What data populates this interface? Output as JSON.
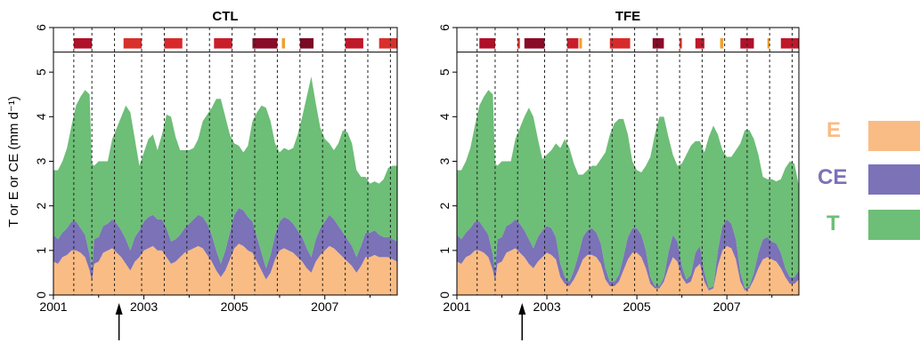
{
  "chart_data": {
    "type": "area",
    "stacked": true,
    "ylabel": "T or E or CE (mm d⁻¹)",
    "ylim": [
      0,
      6
    ],
    "y_ticks": [
      0,
      1,
      2,
      3,
      4,
      5,
      6
    ],
    "xlim": [
      2001.0,
      2008.6
    ],
    "x_ticks": [
      2001,
      2003,
      2005,
      2007
    ],
    "event_bar_ylim": [
      5.45,
      6.0
    ],
    "panels": [
      {
        "title": "CTL",
        "arrow_x": 2002.45,
        "dashed_lines": [
          2001.45,
          2001.85,
          2002.35,
          2002.95,
          2003.45,
          2003.95,
          2004.45,
          2004.95,
          2005.45,
          2005.95,
          2006.45,
          2006.95,
          2007.45,
          2007.95,
          2008.45
        ],
        "events": [
          {
            "x0": 2001.45,
            "x1": 2001.85,
            "color": "#b0102a"
          },
          {
            "x0": 2002.55,
            "x1": 2002.95,
            "color": "#d8302a"
          },
          {
            "x0": 2003.45,
            "x1": 2003.85,
            "color": "#d82a2a"
          },
          {
            "x0": 2004.55,
            "x1": 2004.95,
            "color": "#c81e2a"
          },
          {
            "x0": 2005.4,
            "x1": 2005.95,
            "color": "#8a0a28"
          },
          {
            "x0": 2006.05,
            "x1": 2006.12,
            "color": "#f0a030"
          },
          {
            "x0": 2006.45,
            "x1": 2006.75,
            "color": "#7a0a26"
          },
          {
            "x0": 2007.45,
            "x1": 2007.85,
            "color": "#c0182a"
          },
          {
            "x0": 2008.2,
            "x1": 2008.6,
            "color": "#d8302a"
          }
        ],
        "x": [
          2001.0,
          2001.1,
          2001.2,
          2001.3,
          2001.4,
          2001.5,
          2001.6,
          2001.7,
          2001.8,
          2001.85,
          2001.9,
          2002.0,
          2002.1,
          2002.2,
          2002.3,
          2002.4,
          2002.5,
          2002.6,
          2002.7,
          2002.8,
          2002.9,
          2003.0,
          2003.1,
          2003.2,
          2003.3,
          2003.4,
          2003.5,
          2003.6,
          2003.7,
          2003.8,
          2003.9,
          2004.0,
          2004.1,
          2004.2,
          2004.3,
          2004.4,
          2004.5,
          2004.6,
          2004.7,
          2004.8,
          2004.9,
          2005.0,
          2005.1,
          2005.2,
          2005.3,
          2005.4,
          2005.5,
          2005.6,
          2005.7,
          2005.8,
          2005.9,
          2006.0,
          2006.1,
          2006.2,
          2006.3,
          2006.4,
          2006.5,
          2006.6,
          2006.7,
          2006.8,
          2006.9,
          2007.0,
          2007.1,
          2007.2,
          2007.3,
          2007.4,
          2007.5,
          2007.6,
          2007.7,
          2007.8,
          2007.9,
          2008.0,
          2008.1,
          2008.2,
          2008.3,
          2008.4,
          2008.5,
          2008.6
        ],
        "series": [
          {
            "name": "E",
            "color": "#f9bc84",
            "values": [
              0.75,
              0.7,
              0.85,
              0.9,
              1.0,
              1.0,
              0.95,
              0.85,
              0.55,
              0.3,
              0.7,
              0.75,
              0.95,
              1.0,
              1.05,
              0.95,
              0.85,
              0.7,
              0.55,
              0.75,
              0.85,
              1.0,
              1.05,
              1.1,
              1.0,
              1.0,
              0.85,
              0.7,
              0.75,
              0.85,
              0.95,
              1.0,
              1.05,
              1.1,
              1.05,
              0.9,
              0.75,
              0.55,
              0.4,
              0.55,
              0.8,
              1.05,
              1.15,
              1.1,
              1.0,
              0.95,
              0.75,
              0.55,
              0.35,
              0.5,
              0.8,
              1.0,
              1.05,
              1.0,
              0.95,
              0.85,
              0.75,
              0.6,
              0.5,
              0.75,
              0.9,
              1.0,
              1.1,
              1.05,
              0.95,
              0.85,
              0.75,
              0.65,
              0.5,
              0.65,
              0.85,
              0.85,
              0.9,
              0.85,
              0.85,
              0.85,
              0.8,
              0.75
            ]
          },
          {
            "name": "CE",
            "color": "#7b72b8",
            "values": [
              0.6,
              0.55,
              0.55,
              0.6,
              0.65,
              0.65,
              0.55,
              0.5,
              0.35,
              0.25,
              0.55,
              0.55,
              0.6,
              0.6,
              0.65,
              0.65,
              0.6,
              0.55,
              0.45,
              0.55,
              0.6,
              0.65,
              0.7,
              0.7,
              0.7,
              0.7,
              0.65,
              0.5,
              0.5,
              0.5,
              0.55,
              0.6,
              0.65,
              0.7,
              0.7,
              0.7,
              0.6,
              0.45,
              0.3,
              0.45,
              0.6,
              0.75,
              0.8,
              0.8,
              0.75,
              0.7,
              0.55,
              0.4,
              0.25,
              0.4,
              0.55,
              0.65,
              0.7,
              0.7,
              0.65,
              0.6,
              0.55,
              0.45,
              0.35,
              0.5,
              0.6,
              0.65,
              0.7,
              0.65,
              0.6,
              0.55,
              0.5,
              0.45,
              0.35,
              0.45,
              0.55,
              0.55,
              0.55,
              0.5,
              0.45,
              0.45,
              0.45,
              0.45
            ]
          },
          {
            "name": "T",
            "color": "#6dbe77",
            "values": [
              1.45,
              1.55,
              1.6,
              1.8,
              2.15,
              2.6,
              2.95,
              3.25,
              3.6,
              2.4,
              1.65,
              1.7,
              1.45,
              1.4,
              1.8,
              2.15,
              2.55,
              3.0,
              3.1,
              2.2,
              1.45,
              1.55,
              1.75,
              1.8,
              1.55,
              1.9,
              2.55,
              2.8,
              2.3,
              1.9,
              1.75,
              1.65,
              1.6,
              1.7,
              2.15,
              2.45,
              2.85,
              3.4,
              3.7,
              3.0,
              2.2,
              1.6,
              1.4,
              1.3,
              1.6,
              2.25,
              2.8,
              3.3,
              3.6,
              3.0,
              2.05,
              1.55,
              1.55,
              1.55,
              1.7,
              2.15,
              2.7,
              3.4,
              4.05,
              3.05,
              2.25,
              1.85,
              1.6,
              1.55,
              1.85,
              2.3,
              2.4,
              2.3,
              1.95,
              1.55,
              1.25,
              1.1,
              1.1,
              1.15,
              1.3,
              1.55,
              1.65,
              1.7
            ]
          }
        ]
      },
      {
        "title": "TFE",
        "arrow_x": 2002.45,
        "dashed_lines": [
          2001.45,
          2001.85,
          2002.35,
          2002.95,
          2003.45,
          2003.95,
          2004.45,
          2004.95,
          2005.45,
          2005.95,
          2006.45,
          2006.95,
          2007.45,
          2007.95,
          2008.45
        ],
        "events": [
          {
            "x0": 2001.5,
            "x1": 2001.85,
            "color": "#b0102a"
          },
          {
            "x0": 2002.35,
            "x1": 2002.4,
            "color": "#d8302a"
          },
          {
            "x0": 2002.5,
            "x1": 2002.95,
            "color": "#8a0a28"
          },
          {
            "x0": 2003.45,
            "x1": 2003.7,
            "color": "#c81e2a"
          },
          {
            "x0": 2003.72,
            "x1": 2003.78,
            "color": "#f0a030"
          },
          {
            "x0": 2004.4,
            "x1": 2004.85,
            "color": "#d82a2a"
          },
          {
            "x0": 2005.35,
            "x1": 2005.6,
            "color": "#8a0a28"
          },
          {
            "x0": 2005.95,
            "x1": 2006.0,
            "color": "#e0302a"
          },
          {
            "x0": 2006.3,
            "x1": 2006.5,
            "color": "#c0182a"
          },
          {
            "x0": 2006.85,
            "x1": 2006.92,
            "color": "#f0a030"
          },
          {
            "x0": 2007.3,
            "x1": 2007.6,
            "color": "#b0102a"
          },
          {
            "x0": 2007.9,
            "x1": 2007.95,
            "color": "#f0a030"
          },
          {
            "x0": 2008.2,
            "x1": 2008.6,
            "color": "#c0182a"
          }
        ],
        "x": [
          2001.0,
          2001.1,
          2001.2,
          2001.3,
          2001.4,
          2001.5,
          2001.6,
          2001.7,
          2001.8,
          2001.85,
          2001.9,
          2002.0,
          2002.1,
          2002.2,
          2002.3,
          2002.4,
          2002.5,
          2002.6,
          2002.7,
          2002.8,
          2002.9,
          2003.0,
          2003.1,
          2003.2,
          2003.3,
          2003.4,
          2003.5,
          2003.6,
          2003.7,
          2003.8,
          2003.9,
          2004.0,
          2004.1,
          2004.2,
          2004.3,
          2004.4,
          2004.5,
          2004.6,
          2004.7,
          2004.8,
          2004.9,
          2005.0,
          2005.1,
          2005.2,
          2005.3,
          2005.4,
          2005.5,
          2005.6,
          2005.7,
          2005.8,
          2005.9,
          2006.0,
          2006.1,
          2006.2,
          2006.3,
          2006.4,
          2006.5,
          2006.6,
          2006.7,
          2006.8,
          2006.9,
          2007.0,
          2007.1,
          2007.2,
          2007.3,
          2007.4,
          2007.5,
          2007.6,
          2007.7,
          2007.8,
          2007.9,
          2008.0,
          2008.1,
          2008.2,
          2008.3,
          2008.4,
          2008.5,
          2008.6
        ],
        "series": [
          {
            "name": "E",
            "color": "#f9bc84",
            "values": [
              0.75,
              0.7,
              0.85,
              0.9,
              1.0,
              1.0,
              0.95,
              0.85,
              0.55,
              0.3,
              0.7,
              0.75,
              0.95,
              1.0,
              1.05,
              0.95,
              0.85,
              0.7,
              0.6,
              0.75,
              0.85,
              0.95,
              0.9,
              0.8,
              0.4,
              0.25,
              0.2,
              0.35,
              0.55,
              0.8,
              0.9,
              0.9,
              0.85,
              0.7,
              0.35,
              0.2,
              0.2,
              0.3,
              0.55,
              0.8,
              0.95,
              0.95,
              0.85,
              0.6,
              0.25,
              0.15,
              0.15,
              0.3,
              0.6,
              0.85,
              0.75,
              0.4,
              0.25,
              0.3,
              0.6,
              0.7,
              0.3,
              0.1,
              0.15,
              0.65,
              1.0,
              1.1,
              1.05,
              0.8,
              0.3,
              0.1,
              0.15,
              0.35,
              0.6,
              0.8,
              0.85,
              0.8,
              0.75,
              0.6,
              0.4,
              0.25,
              0.25,
              0.35
            ]
          },
          {
            "name": "CE",
            "color": "#7b72b8",
            "values": [
              0.6,
              0.55,
              0.55,
              0.6,
              0.65,
              0.65,
              0.55,
              0.5,
              0.35,
              0.25,
              0.55,
              0.55,
              0.6,
              0.6,
              0.65,
              0.65,
              0.6,
              0.55,
              0.45,
              0.55,
              0.6,
              0.6,
              0.6,
              0.5,
              0.3,
              0.15,
              0.1,
              0.2,
              0.35,
              0.5,
              0.55,
              0.6,
              0.55,
              0.45,
              0.25,
              0.1,
              0.1,
              0.15,
              0.3,
              0.5,
              0.55,
              0.55,
              0.5,
              0.4,
              0.15,
              0.05,
              0.05,
              0.1,
              0.35,
              0.5,
              0.45,
              0.25,
              0.1,
              0.15,
              0.35,
              0.4,
              0.2,
              0.05,
              0.05,
              0.35,
              0.55,
              0.6,
              0.55,
              0.45,
              0.2,
              0.05,
              0.05,
              0.15,
              0.35,
              0.45,
              0.45,
              0.4,
              0.4,
              0.35,
              0.2,
              0.15,
              0.15,
              0.2
            ]
          },
          {
            "name": "T",
            "color": "#6dbe77",
            "values": [
              1.45,
              1.55,
              1.6,
              1.8,
              2.15,
              2.6,
              2.95,
              3.25,
              3.6,
              2.4,
              1.65,
              1.7,
              1.45,
              1.4,
              1.8,
              2.15,
              2.55,
              2.95,
              2.95,
              2.2,
              1.6,
              1.6,
              1.75,
              2.1,
              2.6,
              3.1,
              3.0,
              2.4,
              1.8,
              1.4,
              1.35,
              1.4,
              1.5,
              1.9,
              2.6,
              3.3,
              3.55,
              3.5,
              3.1,
              2.3,
              1.5,
              1.3,
              1.4,
              1.9,
              2.7,
              3.4,
              3.8,
              3.6,
              2.6,
              1.8,
              1.7,
              2.3,
              2.8,
              2.9,
              2.5,
              2.35,
              2.7,
              3.4,
              3.6,
              2.6,
              1.7,
              1.4,
              1.5,
              2.0,
              2.9,
              3.55,
              3.5,
              3.0,
              2.2,
              1.4,
              1.3,
              1.4,
              1.4,
              1.65,
              2.25,
              2.6,
              2.55,
              1.9
            ]
          }
        ]
      }
    ]
  },
  "legend": [
    {
      "label": "E",
      "color": "#f9bc84",
      "text_color": "#f9bc84"
    },
    {
      "label": "CE",
      "color": "#7b72b8",
      "text_color": "#7b72b8"
    },
    {
      "label": "T",
      "color": "#6dbe77",
      "text_color": "#6dbe77"
    }
  ]
}
